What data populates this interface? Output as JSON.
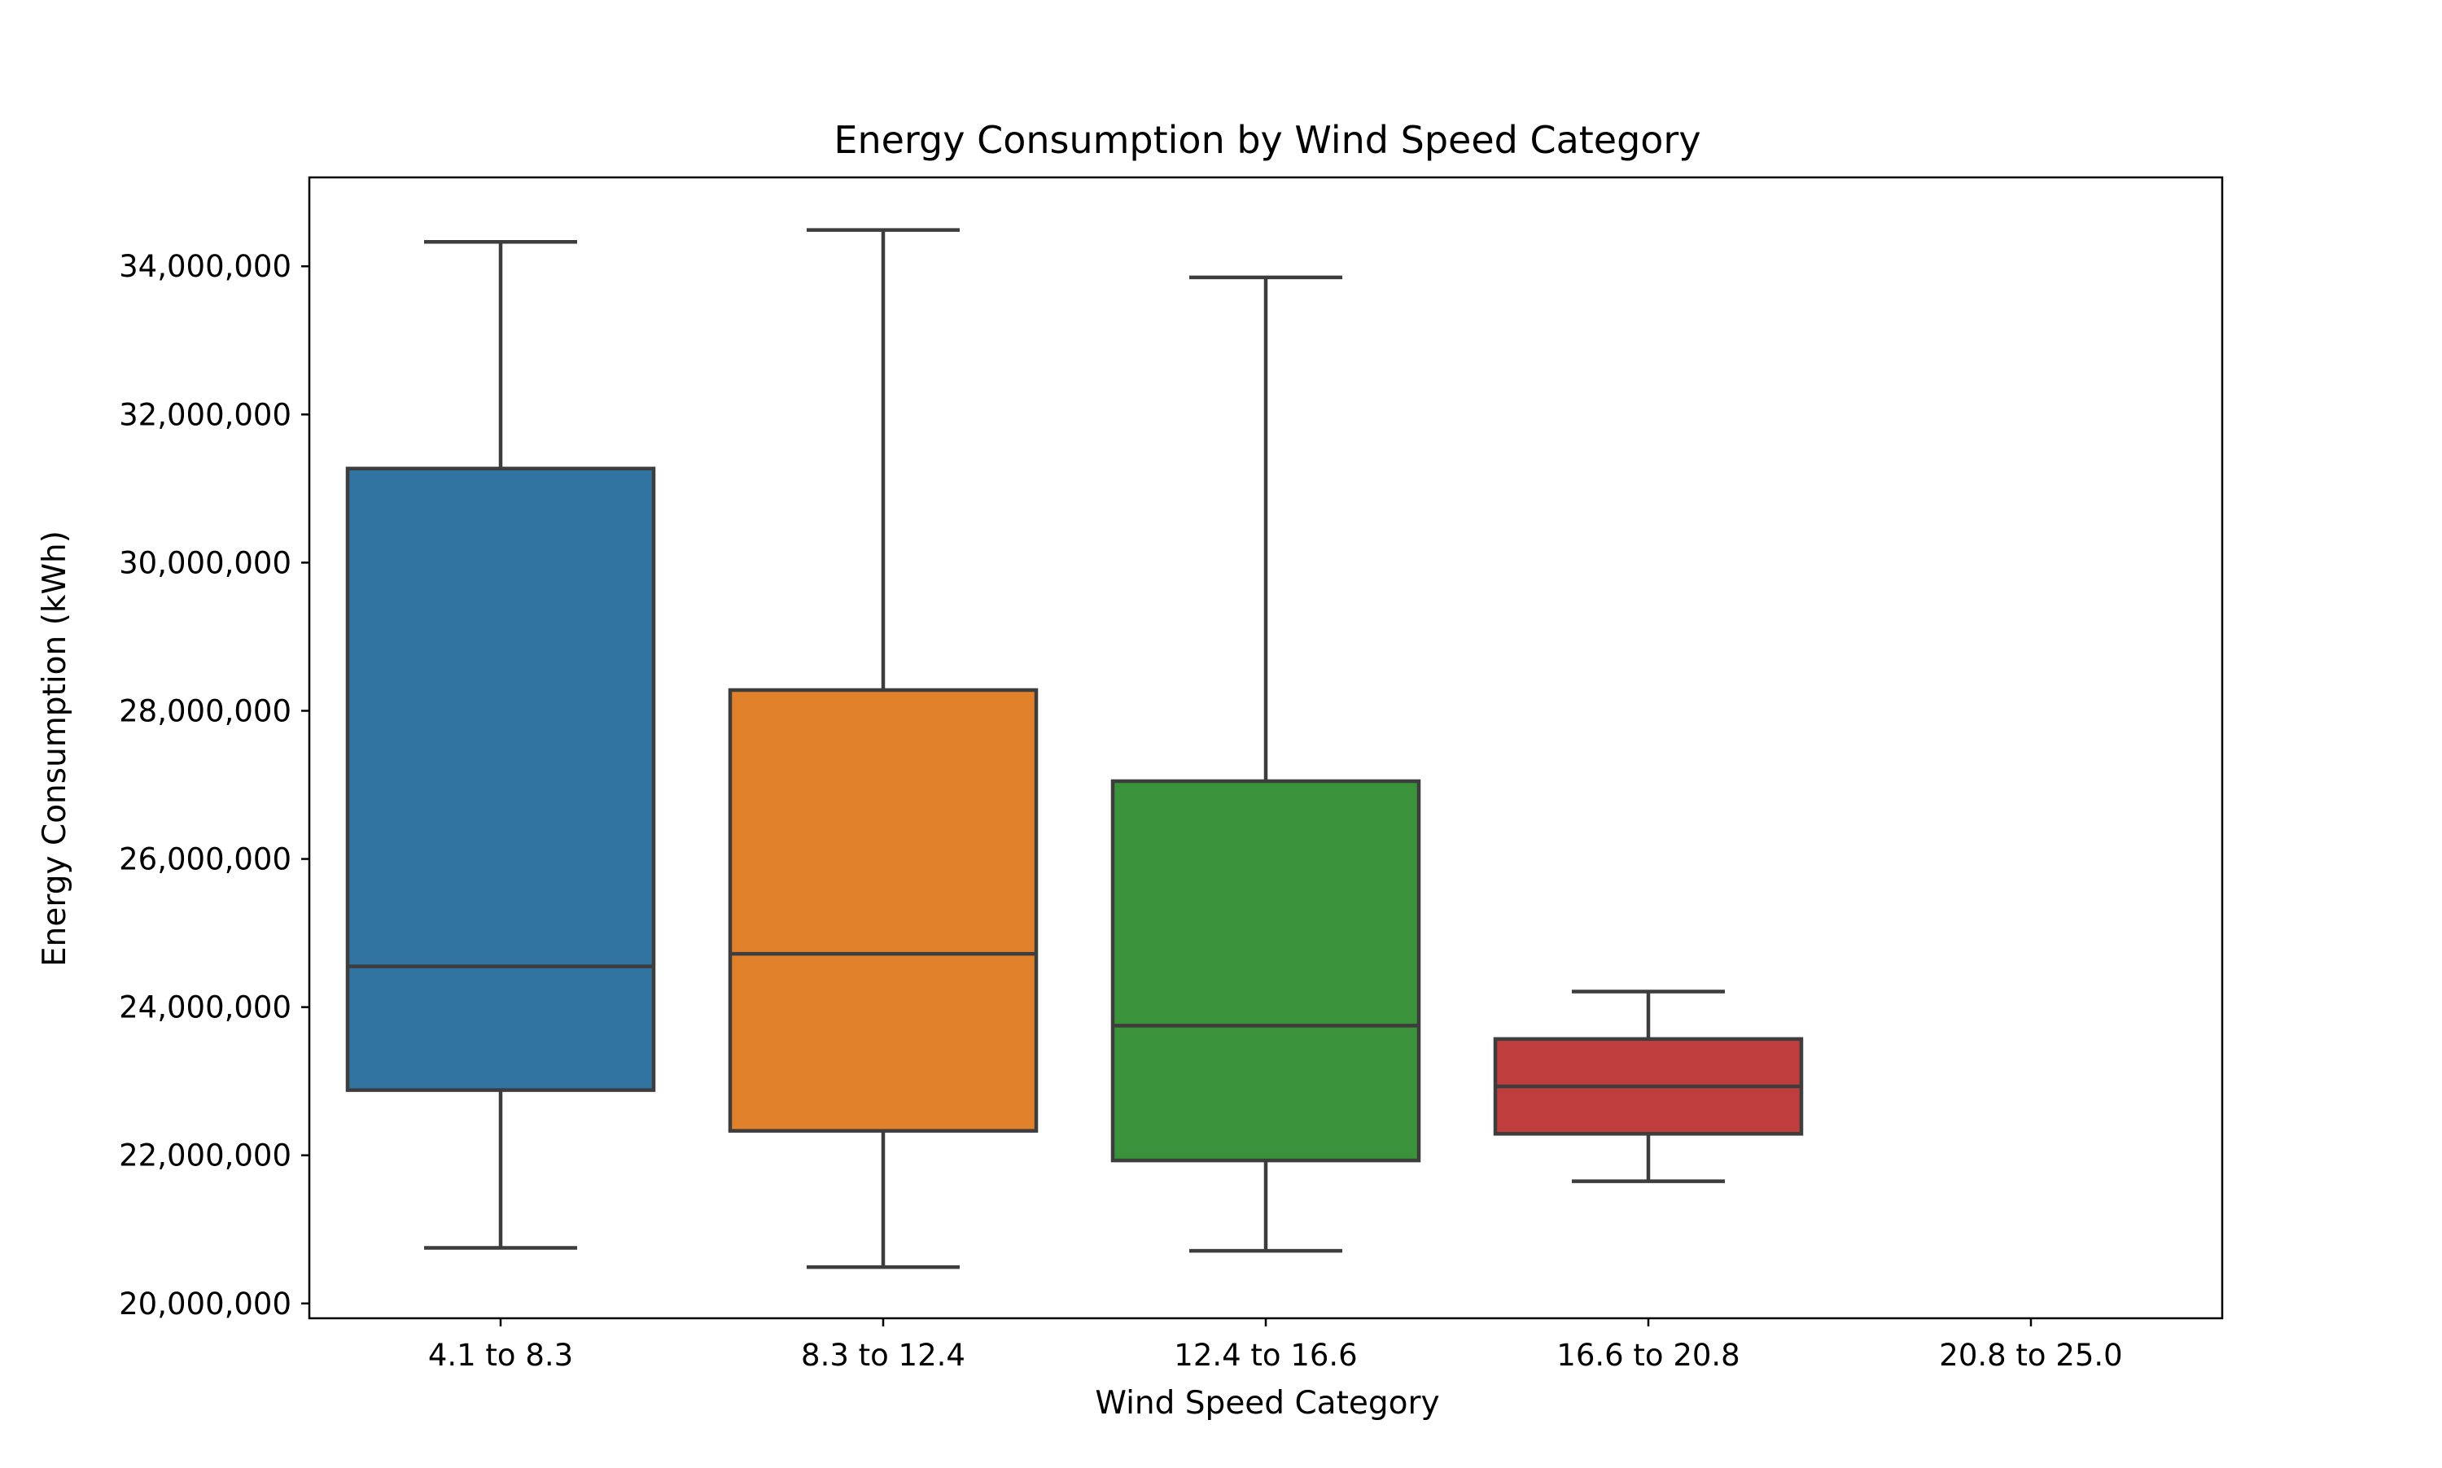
{
  "chart_data": {
    "type": "box",
    "title": "Energy Consumption by Wind Speed Category",
    "xlabel": "Wind Speed Category",
    "ylabel": "Energy Consumption (kWh)",
    "categories": [
      "4.1 to 8.3",
      "8.3 to 12.4",
      "12.4 to 16.6",
      "16.6 to 20.8",
      "20.8 to 25.0"
    ],
    "ylim": [
      19800000,
      35200000
    ],
    "yticks": [
      20000000,
      22000000,
      24000000,
      26000000,
      28000000,
      30000000,
      32000000,
      34000000
    ],
    "ytick_labels": [
      "20,000,000",
      "22,000,000",
      "24,000,000",
      "26,000,000",
      "28,000,000",
      "30,000,000",
      "32,000,000",
      "34,000,000"
    ],
    "grid": false,
    "legend": "none",
    "boxes": [
      {
        "category": "4.1 to 8.3",
        "whisker_low": 20750000,
        "q1": 22880000,
        "median": 24550000,
        "q3": 31270000,
        "whisker_high": 34330000,
        "color": "#3274a1"
      },
      {
        "category": "8.3 to 12.4",
        "whisker_low": 20490000,
        "q1": 22330000,
        "median": 24720000,
        "q3": 28280000,
        "whisker_high": 34490000,
        "color": "#e1812c"
      },
      {
        "category": "12.4 to 16.6",
        "whisker_low": 20710000,
        "q1": 21930000,
        "median": 23750000,
        "q3": 27050000,
        "whisker_high": 33850000,
        "color": "#3a923a"
      },
      {
        "category": "16.6 to 20.8",
        "whisker_low": 21650000,
        "q1": 22290000,
        "median": 22930000,
        "q3": 23570000,
        "whisker_high": 24210000,
        "color": "#c03d3e"
      },
      {
        "category": "20.8 to 25.0",
        "empty": true
      }
    ],
    "line_color": "#3d3d3d"
  }
}
